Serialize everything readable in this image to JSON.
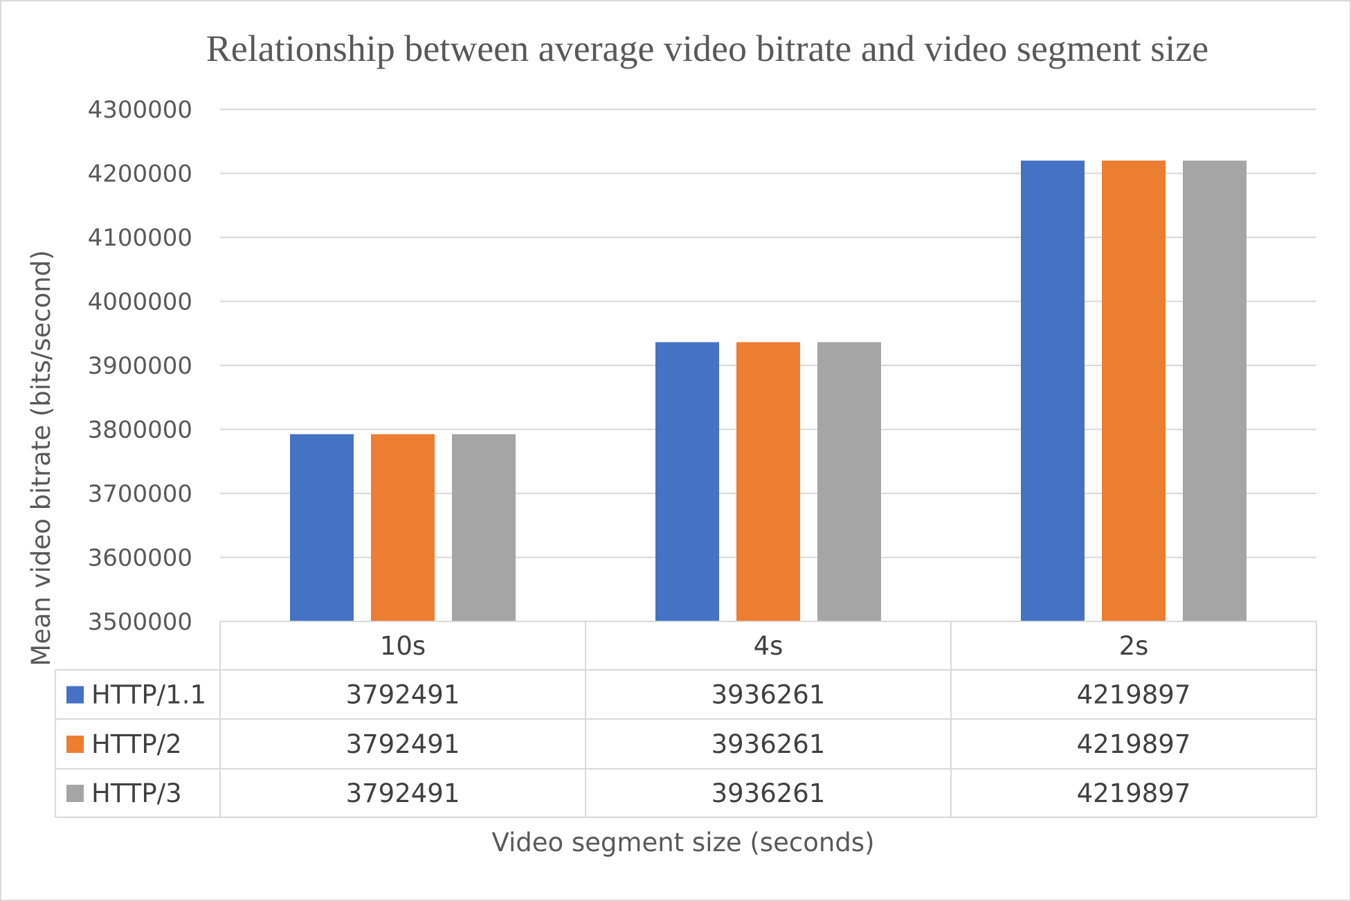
{
  "chart_data": {
    "type": "bar",
    "title": "Relationship between average video bitrate and video segment size",
    "xlabel": "Video segment size (seconds)",
    "ylabel": "Mean video bitrate (bits/second)",
    "ylim": [
      3500000,
      4300000
    ],
    "yticks": [
      3500000,
      3600000,
      3700000,
      3800000,
      3900000,
      4000000,
      4100000,
      4200000,
      4300000
    ],
    "grid": true,
    "legend": "data-table",
    "categories": [
      "10s",
      "4s",
      "2s"
    ],
    "series": [
      {
        "name": "HTTP/1.1",
        "color": "#4472C4",
        "values": [
          3792491,
          3936261,
          4219897
        ]
      },
      {
        "name": "HTTP/2",
        "color": "#ED7D31",
        "values": [
          3792491,
          3936261,
          4219897
        ]
      },
      {
        "name": "HTTP/3",
        "color": "#A5A5A5",
        "values": [
          3792491,
          3936261,
          4219897
        ]
      }
    ]
  }
}
